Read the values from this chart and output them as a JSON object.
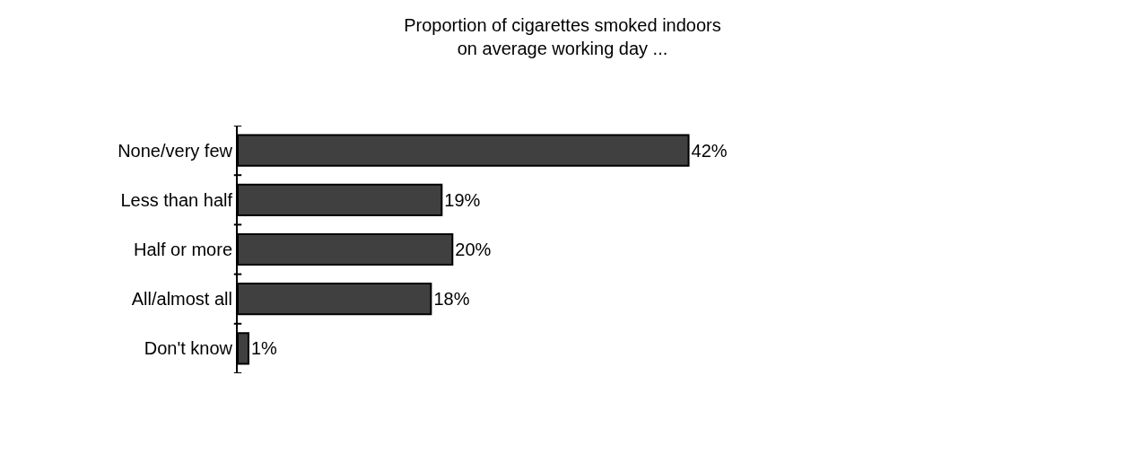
{
  "chart_data": {
    "type": "bar",
    "orientation": "horizontal",
    "title": "Proportion of cigarettes smoked indoors\non average working day ...",
    "categories": [
      "None/very few",
      "Less than half",
      "Half or more",
      "All/almost all",
      "Don't know"
    ],
    "values": [
      42,
      19,
      20,
      18,
      1
    ],
    "value_labels": [
      "42%",
      "19%",
      "20%",
      "18%",
      "1%"
    ],
    "color": "#404040",
    "tick_labels": "y",
    "legend": false
  }
}
